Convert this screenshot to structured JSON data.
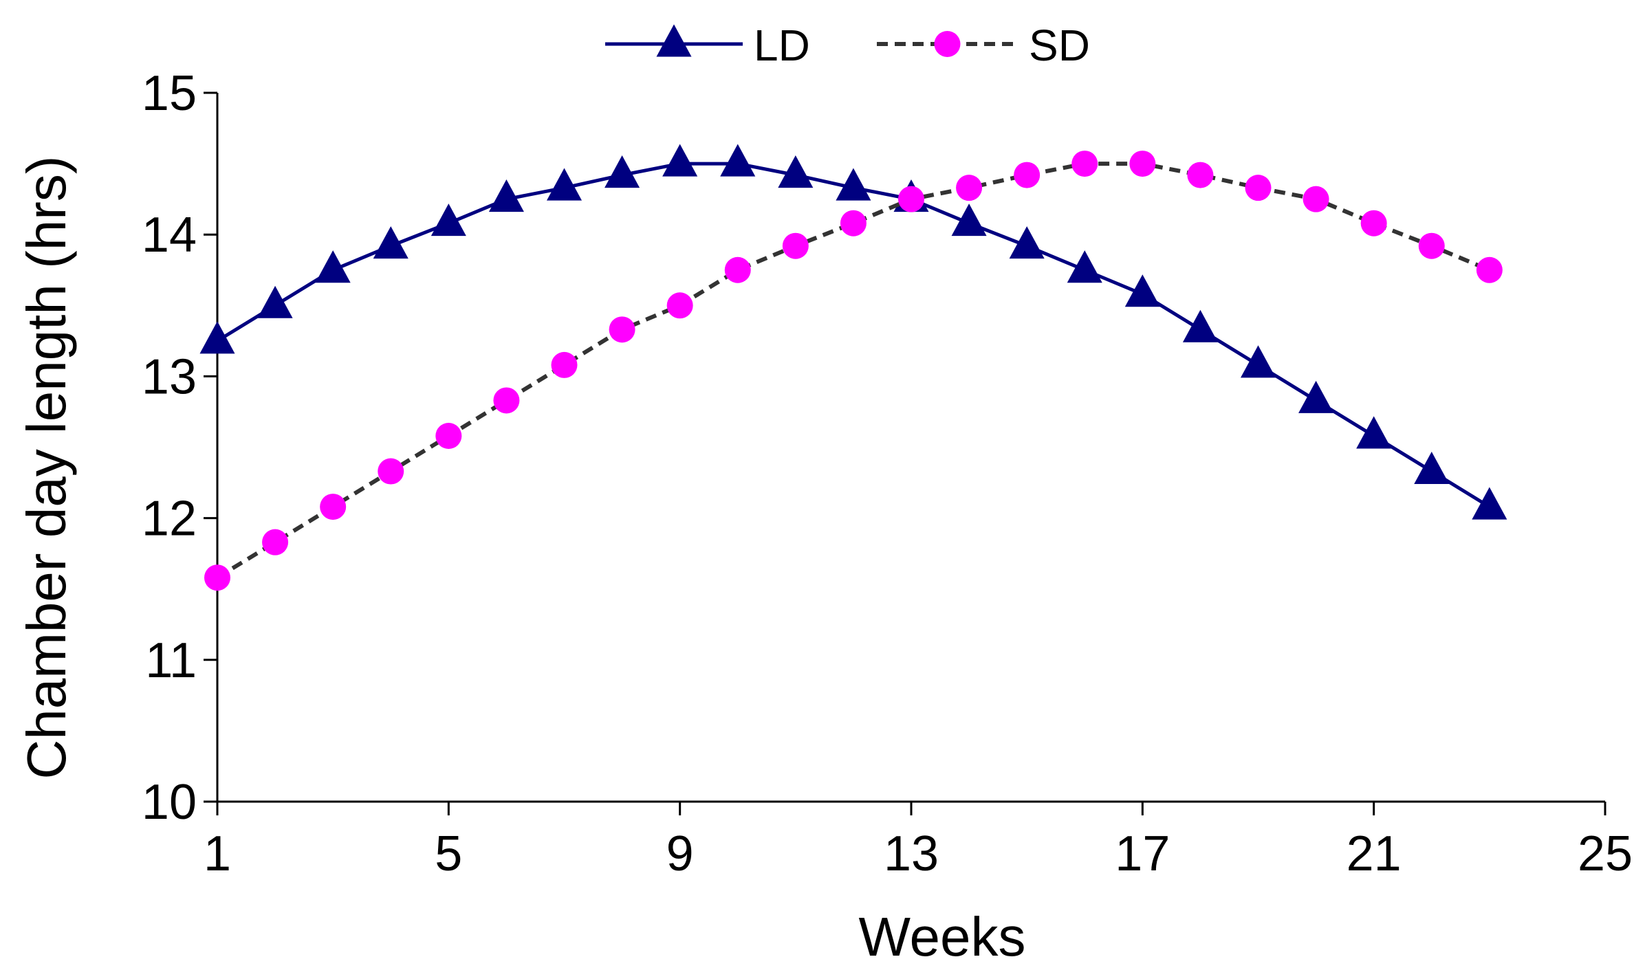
{
  "chart_data": {
    "type": "line",
    "title": "",
    "xlabel": "Weeks",
    "ylabel": "Chamber day length (hrs)",
    "xlim": [
      1,
      25
    ],
    "ylim": [
      10,
      15
    ],
    "xticks": [
      1,
      5,
      9,
      13,
      17,
      21,
      25
    ],
    "yticks": [
      10,
      11,
      12,
      13,
      14,
      15
    ],
    "grid": false,
    "legend_position": "top-center",
    "x": [
      1,
      2,
      3,
      4,
      5,
      6,
      7,
      8,
      9,
      10,
      11,
      12,
      13,
      14,
      15,
      16,
      17,
      18,
      19,
      20,
      21,
      22,
      23
    ],
    "series": [
      {
        "name": "LD",
        "marker": "triangle",
        "line": "solid",
        "color": "#000080",
        "values": [
          13.25,
          13.5,
          13.75,
          13.92,
          14.08,
          14.25,
          14.33,
          14.42,
          14.5,
          14.5,
          14.42,
          14.33,
          14.25,
          14.08,
          13.92,
          13.75,
          13.58,
          13.33,
          13.08,
          12.83,
          12.58,
          12.33,
          12.08
        ]
      },
      {
        "name": "SD",
        "marker": "circle",
        "line": "dashed",
        "color": "#FF00FF",
        "line_color": "#333333",
        "values": [
          11.58,
          11.83,
          12.08,
          12.33,
          12.58,
          12.83,
          13.08,
          13.33,
          13.5,
          13.75,
          13.92,
          14.08,
          14.25,
          14.33,
          14.42,
          14.5,
          14.5,
          14.42,
          14.33,
          14.25,
          14.08,
          13.92,
          13.75
        ]
      }
    ]
  }
}
